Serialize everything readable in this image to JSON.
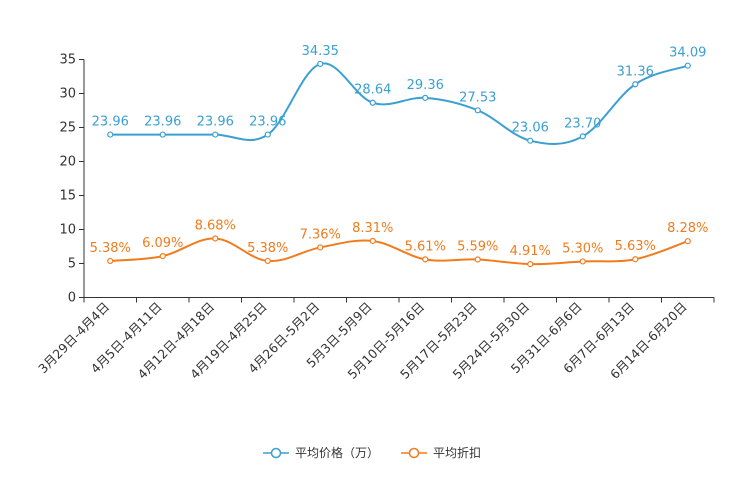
{
  "chart_data": {
    "type": "line",
    "categories": [
      "3月29日-4月4日",
      "4月5日-4月11日",
      "4月12日-4月18日",
      "4月19日-4月25日",
      "4月26日-5月2日",
      "5月3日-5月9日",
      "5月10日-5月16日",
      "5月17日-5月23日",
      "5月24日-5月30日",
      "5月31日-6月6日",
      "6月7日-6月13日",
      "6月14日-6月20日"
    ],
    "series": [
      {
        "name": "平均价格（万）",
        "color": "#3ba0d1",
        "values": [
          23.96,
          23.96,
          23.96,
          23.96,
          34.35,
          28.64,
          29.36,
          27.53,
          23.06,
          23.7,
          31.36,
          34.09
        ],
        "labels": [
          "23.96",
          "23.96",
          "23.96",
          "23.96",
          "34.35",
          "28.64",
          "29.36",
          "27.53",
          "23.06",
          "23.70",
          "31.36",
          "34.09"
        ]
      },
      {
        "name": "平均折扣",
        "color": "#f07c1e",
        "values": [
          5.38,
          6.09,
          8.68,
          5.38,
          7.36,
          8.31,
          5.61,
          5.59,
          4.91,
          5.3,
          5.63,
          8.28
        ],
        "labels": [
          "5.38%",
          "6.09%",
          "8.68%",
          "5.38%",
          "7.36%",
          "8.31%",
          "5.61%",
          "5.59%",
          "4.91%",
          "5.30%",
          "5.63%",
          "8.28%"
        ]
      }
    ],
    "yticks": [
      0,
      5,
      10,
      15,
      20,
      25,
      30,
      35
    ],
    "ylim": [
      0,
      35
    ],
    "title": "",
    "xlabel": "",
    "ylabel": ""
  }
}
